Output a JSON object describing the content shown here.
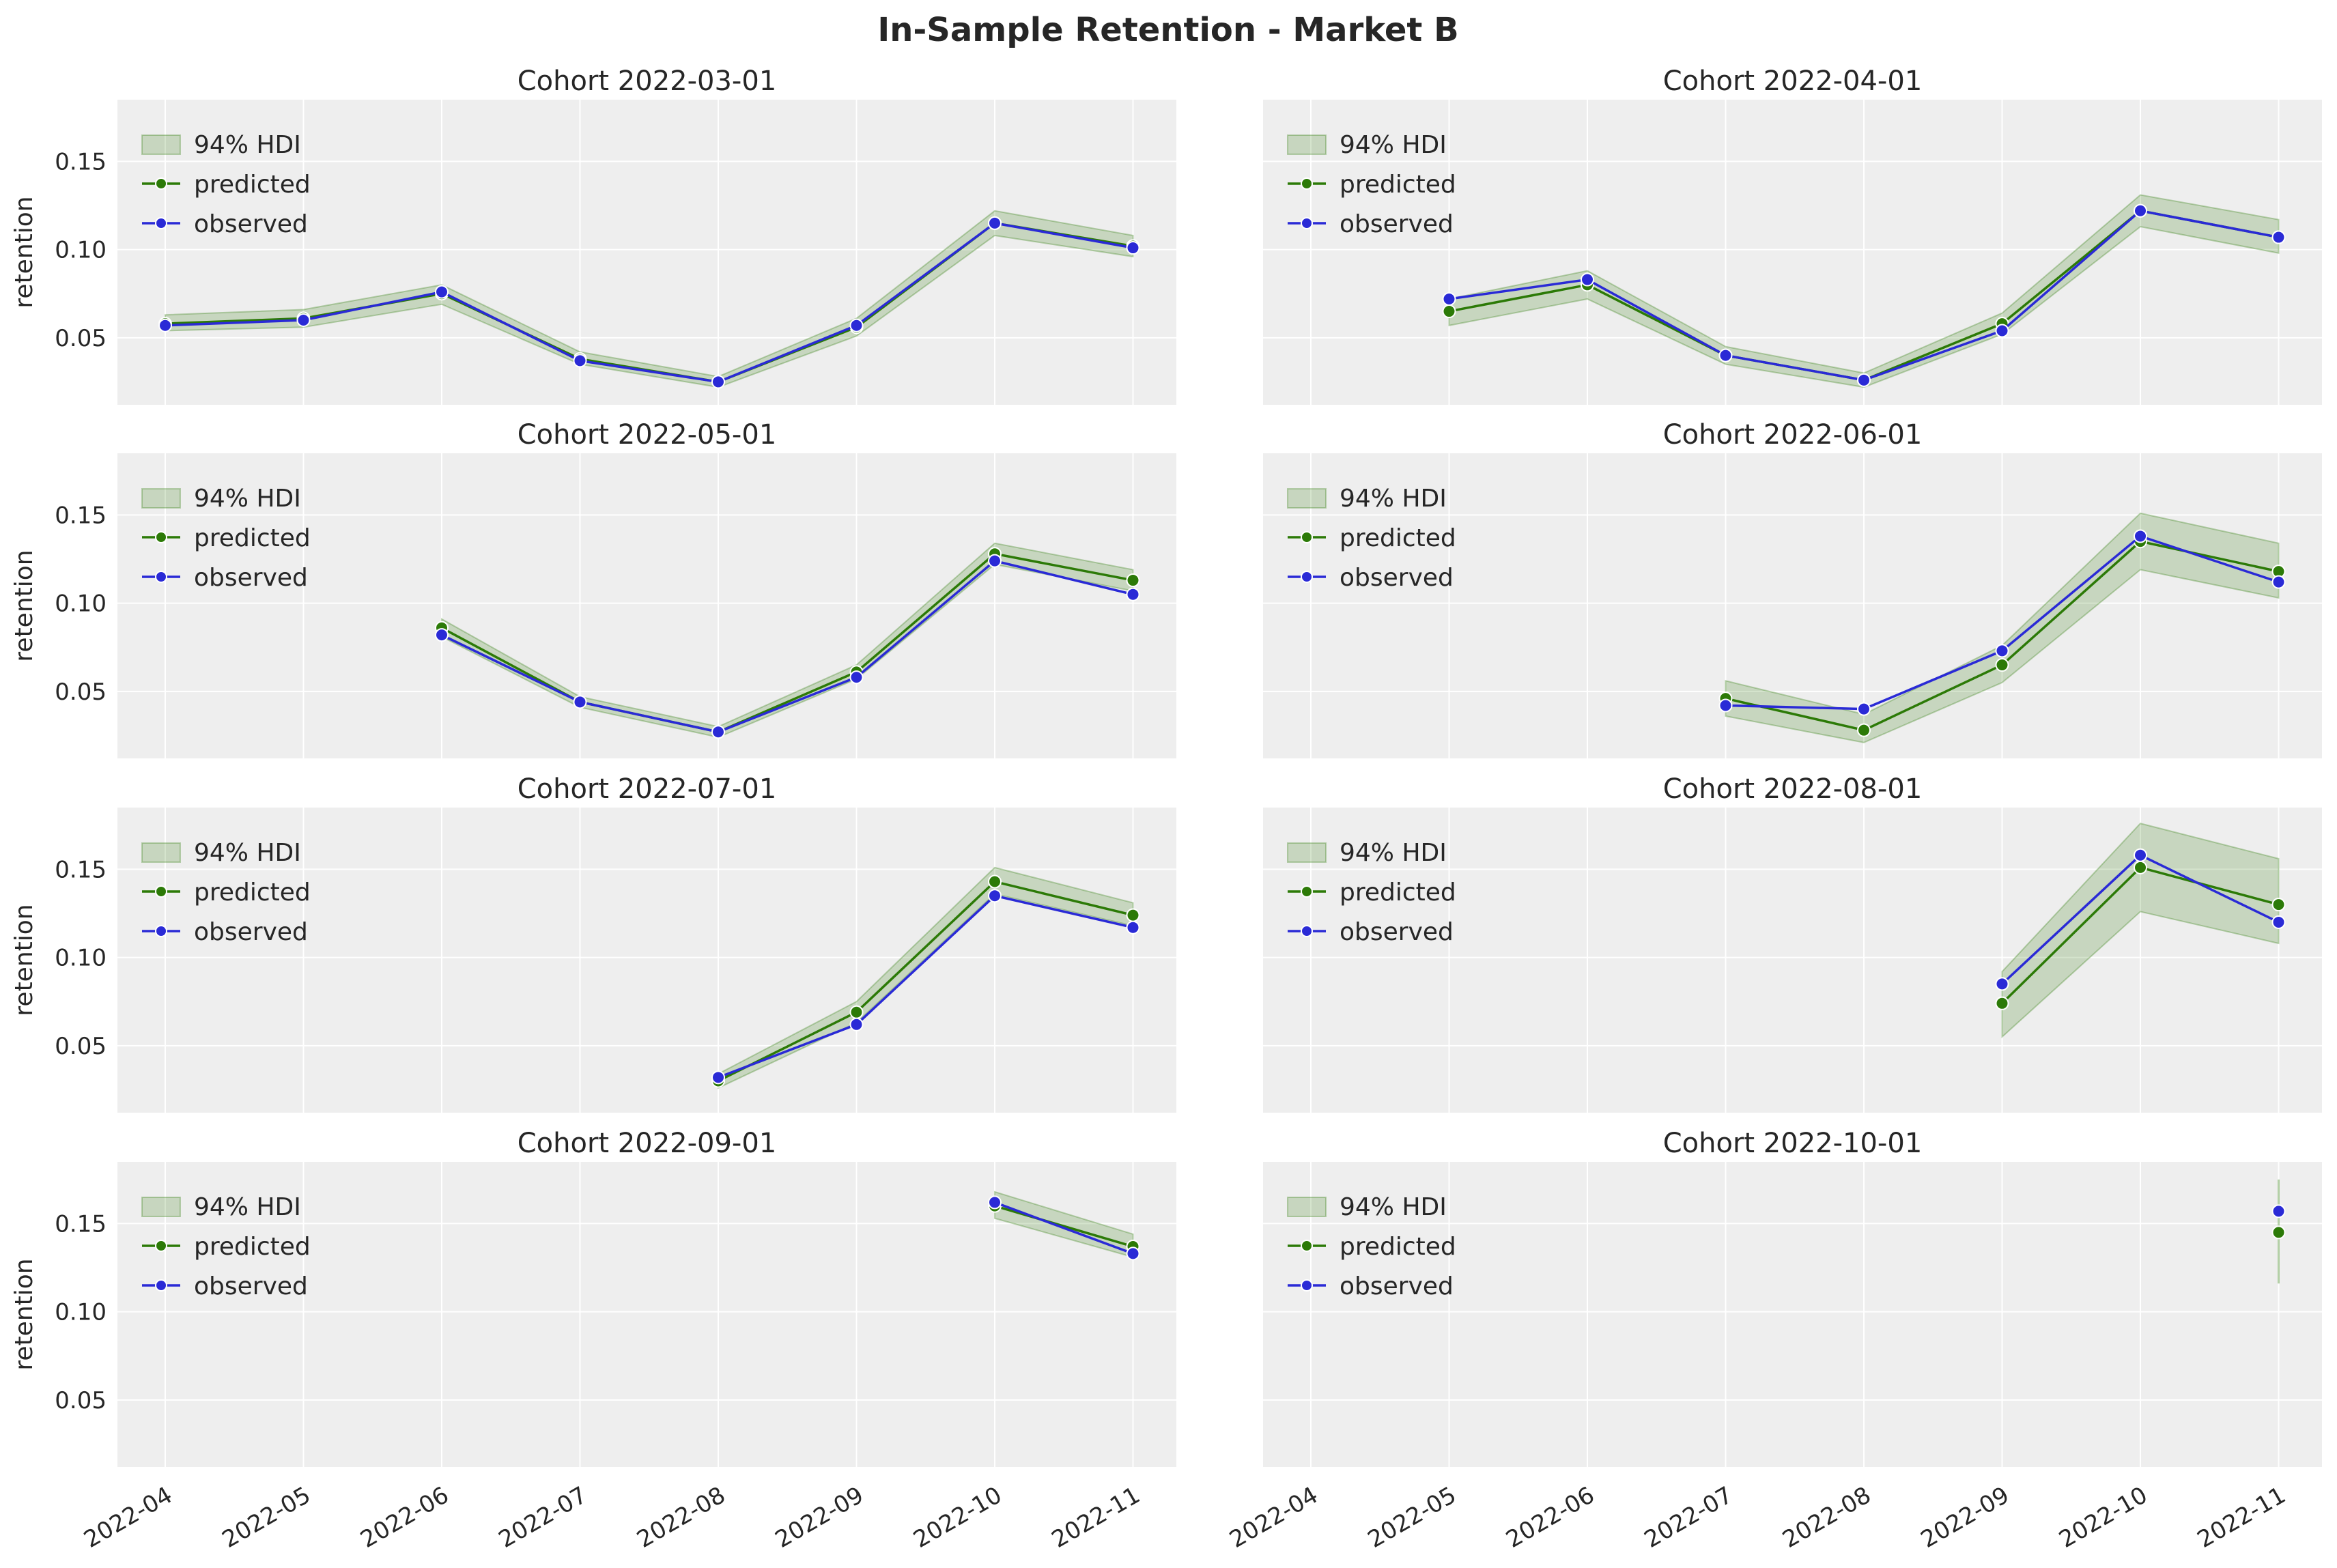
{
  "title": "In-Sample Retention - Market B",
  "colors": {
    "background": "#eeeeee",
    "grid": "#ffffff",
    "predicted": "#2c7a07",
    "observed": "#2a2ad6",
    "hdi_fill": "#2c7a07",
    "hdi_alpha": 0.2
  },
  "legend": {
    "hdi_label": "94% HDI",
    "predicted_label": "predicted",
    "observed_label": "observed",
    "placement": "upper-left"
  },
  "chart_data": {
    "type": "line",
    "layout": {
      "rows": 4,
      "cols": 2
    },
    "x_ticks": [
      "2022-04",
      "2022-05",
      "2022-06",
      "2022-07",
      "2022-08",
      "2022-09",
      "2022-10",
      "2022-11"
    ],
    "y_ticks": [
      "0.05",
      "0.10",
      "0.15"
    ],
    "ylim": [
      0.012,
      0.185
    ],
    "ylabel": "retention",
    "grid": true,
    "panels": [
      {
        "title": "Cohort 2022-03-01",
        "x": [
          "2022-04",
          "2022-05",
          "2022-06",
          "2022-07",
          "2022-08",
          "2022-09",
          "2022-10",
          "2022-11"
        ],
        "predicted": [
          0.058,
          0.061,
          0.075,
          0.038,
          0.025,
          0.056,
          0.115,
          0.102
        ],
        "observed": [
          0.057,
          0.06,
          0.076,
          0.037,
          0.025,
          0.057,
          0.115,
          0.101
        ],
        "hdi_low": [
          0.054,
          0.056,
          0.069,
          0.035,
          0.022,
          0.051,
          0.108,
          0.096
        ],
        "hdi_high": [
          0.063,
          0.066,
          0.08,
          0.042,
          0.028,
          0.061,
          0.122,
          0.108
        ]
      },
      {
        "title": "Cohort 2022-04-01",
        "x": [
          "2022-05",
          "2022-06",
          "2022-07",
          "2022-08",
          "2022-09",
          "2022-10",
          "2022-11"
        ],
        "predicted": [
          0.065,
          0.08,
          0.04,
          0.026,
          0.058,
          0.122,
          0.107
        ],
        "observed": [
          0.072,
          0.083,
          0.04,
          0.026,
          0.054,
          0.122,
          0.107
        ],
        "hdi_low": [
          0.057,
          0.072,
          0.035,
          0.022,
          0.052,
          0.113,
          0.098
        ],
        "hdi_high": [
          0.072,
          0.088,
          0.045,
          0.03,
          0.064,
          0.131,
          0.117
        ]
      },
      {
        "title": "Cohort 2022-05-01",
        "x": [
          "2022-06",
          "2022-07",
          "2022-08",
          "2022-09",
          "2022-10",
          "2022-11"
        ],
        "predicted": [
          0.086,
          0.044,
          0.027,
          0.061,
          0.128,
          0.113
        ],
        "observed": [
          0.082,
          0.044,
          0.027,
          0.058,
          0.124,
          0.105
        ],
        "hdi_low": [
          0.081,
          0.041,
          0.024,
          0.057,
          0.122,
          0.107
        ],
        "hdi_high": [
          0.091,
          0.047,
          0.03,
          0.065,
          0.134,
          0.119
        ]
      },
      {
        "title": "Cohort 2022-06-01",
        "x": [
          "2022-07",
          "2022-08",
          "2022-09",
          "2022-10",
          "2022-11"
        ],
        "predicted": [
          0.046,
          0.028,
          0.065,
          0.135,
          0.118
        ],
        "observed": [
          0.042,
          0.04,
          0.073,
          0.138,
          0.112
        ],
        "hdi_low": [
          0.036,
          0.021,
          0.055,
          0.119,
          0.103
        ],
        "hdi_high": [
          0.056,
          0.037,
          0.076,
          0.151,
          0.134
        ]
      },
      {
        "title": "Cohort 2022-07-01",
        "x": [
          "2022-08",
          "2022-09",
          "2022-10",
          "2022-11"
        ],
        "predicted": [
          0.03,
          0.069,
          0.143,
          0.124
        ],
        "observed": [
          0.032,
          0.062,
          0.135,
          0.117
        ],
        "hdi_low": [
          0.026,
          0.063,
          0.136,
          0.118
        ],
        "hdi_high": [
          0.034,
          0.075,
          0.151,
          0.131
        ]
      },
      {
        "title": "Cohort 2022-08-01",
        "x": [
          "2022-09",
          "2022-10",
          "2022-11"
        ],
        "predicted": [
          0.074,
          0.151,
          0.13
        ],
        "observed": [
          0.085,
          0.158,
          0.12
        ],
        "hdi_low": [
          0.055,
          0.126,
          0.108
        ],
        "hdi_high": [
          0.092,
          0.176,
          0.156
        ]
      },
      {
        "title": "Cohort 2022-09-01",
        "x": [
          "2022-10",
          "2022-11"
        ],
        "predicted": [
          0.16,
          0.137
        ],
        "observed": [
          0.162,
          0.133
        ],
        "hdi_low": [
          0.153,
          0.131
        ],
        "hdi_high": [
          0.168,
          0.144
        ]
      },
      {
        "title": "Cohort 2022-10-01",
        "x": [
          "2022-11"
        ],
        "predicted": [
          0.145
        ],
        "observed": [
          0.157
        ],
        "hdi_low": [
          0.116
        ],
        "hdi_high": [
          0.175
        ]
      }
    ]
  }
}
